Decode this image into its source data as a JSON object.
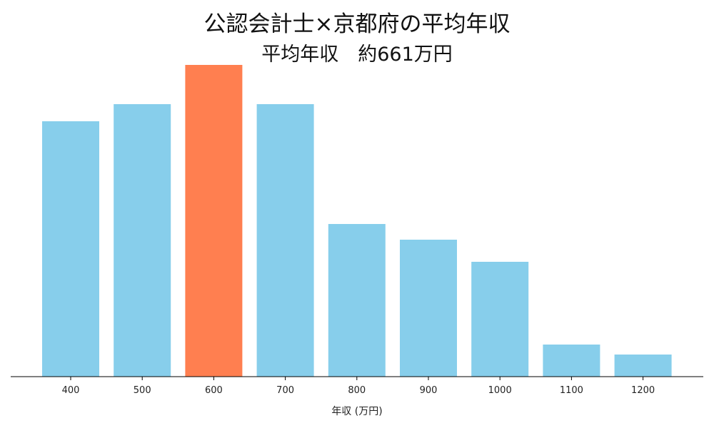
{
  "chart_data": {
    "type": "bar",
    "title": "公認会計士×京都府の平均年収",
    "subtitle": "平均年収　約661万円",
    "xlabel": "年収 (万円)",
    "ylabel": "",
    "categories": [
      "400",
      "500",
      "600",
      "700",
      "800",
      "900",
      "1000",
      "1100",
      "1200"
    ],
    "values": [
      358,
      382,
      437,
      382,
      214,
      192,
      161,
      45,
      31
    ],
    "value_units": "relative (no y-axis shown)",
    "highlight_category": "600",
    "colors": {
      "bar": "#87CEEB",
      "highlight": "#FF7F50"
    },
    "ylim": [
      0,
      437
    ],
    "grid": false
  }
}
